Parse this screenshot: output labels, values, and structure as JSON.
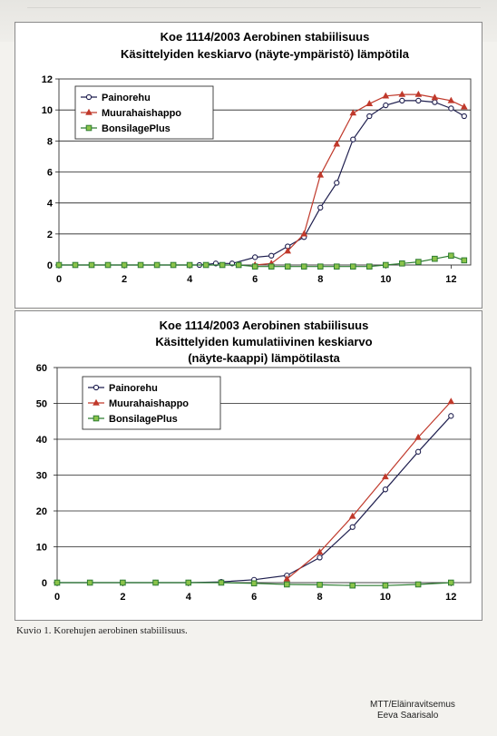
{
  "caption": "Kuvio 1.   Korehujen aerobinen stabiilisuus.",
  "footer": {
    "org": "MTT/Eläinravitsemus",
    "author": "Eeva Saarisalo"
  },
  "chart_data": [
    {
      "type": "line",
      "title_lines": [
        "Koe 1114/2003 Aerobinen stabiilisuus",
        "Käsittelyiden keskiarvo (näyte-ympäristö) lämpötila"
      ],
      "xlim": [
        0,
        12.6
      ],
      "ylim": [
        0,
        12
      ],
      "xticks": [
        "0",
        "2",
        "4",
        "6",
        "8",
        "10",
        "12"
      ],
      "yticks": [
        "0",
        "2",
        "4",
        "6",
        "8",
        "10",
        "12"
      ],
      "grid": "horizontal",
      "legend": "top-left",
      "series": [
        {
          "name": "Painorehu",
          "color": "#1f1f4f",
          "marker": "circle",
          "points": [
            [
              0,
              0
            ],
            [
              0.5,
              0
            ],
            [
              1,
              0
            ],
            [
              1.5,
              0
            ],
            [
              2,
              0
            ],
            [
              2.5,
              0
            ],
            [
              3,
              0
            ],
            [
              3.5,
              0
            ],
            [
              4.3,
              0
            ],
            [
              4.8,
              0.1
            ],
            [
              5.3,
              0.1
            ],
            [
              6,
              0.5
            ],
            [
              6.5,
              0.6
            ],
            [
              7,
              1.2
            ],
            [
              7.5,
              1.8
            ],
            [
              8,
              3.7
            ],
            [
              8.5,
              5.3
            ],
            [
              9,
              8.1
            ],
            [
              9.5,
              9.6
            ],
            [
              10,
              10.3
            ],
            [
              10.5,
              10.6
            ],
            [
              11,
              10.6
            ],
            [
              11.5,
              10.5
            ],
            [
              12,
              10.1
            ],
            [
              12.4,
              9.6
            ]
          ]
        },
        {
          "name": "Muurahaishappo",
          "color": "#c0392b",
          "marker": "triangle",
          "points": [
            [
              6,
              0
            ],
            [
              6.5,
              0.1
            ],
            [
              7,
              0.9
            ],
            [
              7.5,
              2
            ],
            [
              8,
              5.8
            ],
            [
              8.5,
              7.8
            ],
            [
              9,
              9.8
            ],
            [
              9.5,
              10.4
            ],
            [
              10,
              10.9
            ],
            [
              10.5,
              11
            ],
            [
              11,
              11
            ],
            [
              11.5,
              10.8
            ],
            [
              12,
              10.6
            ],
            [
              12.4,
              10.2
            ]
          ]
        },
        {
          "name": "BonsilagePlus",
          "color": "#2e7d32",
          "marker": "square",
          "points": [
            [
              0,
              0
            ],
            [
              0.5,
              0
            ],
            [
              1,
              0
            ],
            [
              1.5,
              0
            ],
            [
              2,
              0
            ],
            [
              2.5,
              0
            ],
            [
              3,
              0
            ],
            [
              3.5,
              0
            ],
            [
              4,
              0
            ],
            [
              4.5,
              0
            ],
            [
              5,
              0
            ],
            [
              5.5,
              0
            ],
            [
              6,
              -0.1
            ],
            [
              6.5,
              -0.1
            ],
            [
              7,
              -0.1
            ],
            [
              7.5,
              -0.1
            ],
            [
              8,
              -0.1
            ],
            [
              8.5,
              -0.1
            ],
            [
              9,
              -0.1
            ],
            [
              9.5,
              -0.1
            ],
            [
              10,
              0
            ],
            [
              10.5,
              0.1
            ],
            [
              11,
              0.2
            ],
            [
              11.5,
              0.4
            ],
            [
              12,
              0.6
            ],
            [
              12.4,
              0.3
            ]
          ]
        }
      ]
    },
    {
      "type": "line",
      "title_lines": [
        "Koe 1114/2003 Aerobinen stabiilisuus",
        "Käsittelyiden kumulatiivinen keskiarvo",
        "(näyte-kaappi) lämpötilasta"
      ],
      "xlim": [
        0,
        12.6
      ],
      "ylim": [
        0,
        60
      ],
      "xticks": [
        "0",
        "2",
        "4",
        "6",
        "8",
        "10",
        "12"
      ],
      "yticks": [
        "0",
        "10",
        "20",
        "30",
        "40",
        "50",
        "60"
      ],
      "grid": "horizontal",
      "legend": "top-left",
      "series": [
        {
          "name": "Painorehu",
          "color": "#1f1f4f",
          "marker": "circle",
          "points": [
            [
              0,
              0
            ],
            [
              1,
              0
            ],
            [
              2,
              0
            ],
            [
              3,
              0
            ],
            [
              4,
              0
            ],
            [
              5,
              0.2
            ],
            [
              6,
              0.8
            ],
            [
              7,
              2
            ],
            [
              8,
              7
            ],
            [
              9,
              15.5
            ],
            [
              10,
              26
            ],
            [
              11,
              36.5
            ],
            [
              12,
              46.5
            ]
          ]
        },
        {
          "name": "Muurahaishappo",
          "color": "#c0392b",
          "marker": "triangle",
          "points": [
            [
              7,
              1
            ],
            [
              8,
              8.5
            ],
            [
              9,
              18.5
            ],
            [
              10,
              29.5
            ],
            [
              11,
              40.5
            ],
            [
              12,
              50.5
            ]
          ]
        },
        {
          "name": "BonsilagePlus",
          "color": "#2e7d32",
          "marker": "square",
          "points": [
            [
              0,
              0
            ],
            [
              1,
              0
            ],
            [
              2,
              0
            ],
            [
              3,
              0
            ],
            [
              4,
              0
            ],
            [
              5,
              0
            ],
            [
              6,
              -0.2
            ],
            [
              7,
              -0.5
            ],
            [
              8,
              -0.6
            ],
            [
              9,
              -0.8
            ],
            [
              10,
              -0.8
            ],
            [
              11,
              -0.5
            ],
            [
              12,
              0
            ]
          ]
        }
      ]
    }
  ]
}
